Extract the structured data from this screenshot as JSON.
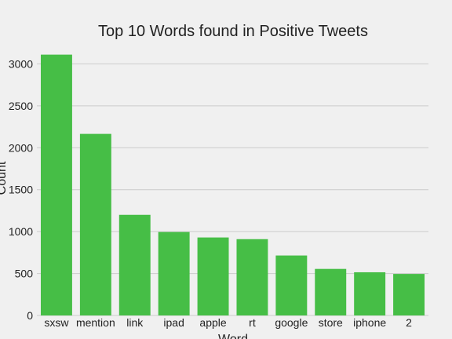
{
  "chart_data": {
    "type": "bar",
    "title": "Top 10 Words found in Positive Tweets",
    "xlabel": "Word",
    "ylabel": "Count",
    "categories": [
      "sxsw",
      "mention",
      "link",
      "ipad",
      "apple",
      "rt",
      "google",
      "store",
      "iphone",
      "2"
    ],
    "values": [
      3110,
      2165,
      1200,
      995,
      930,
      910,
      715,
      555,
      515,
      495
    ],
    "ylim": [
      0,
      3200
    ],
    "yticks": [
      0,
      500,
      1000,
      1500,
      2000,
      2500,
      3000
    ],
    "grid": true,
    "bar_color": "#46be46",
    "background_color": "#f0f0f0"
  }
}
